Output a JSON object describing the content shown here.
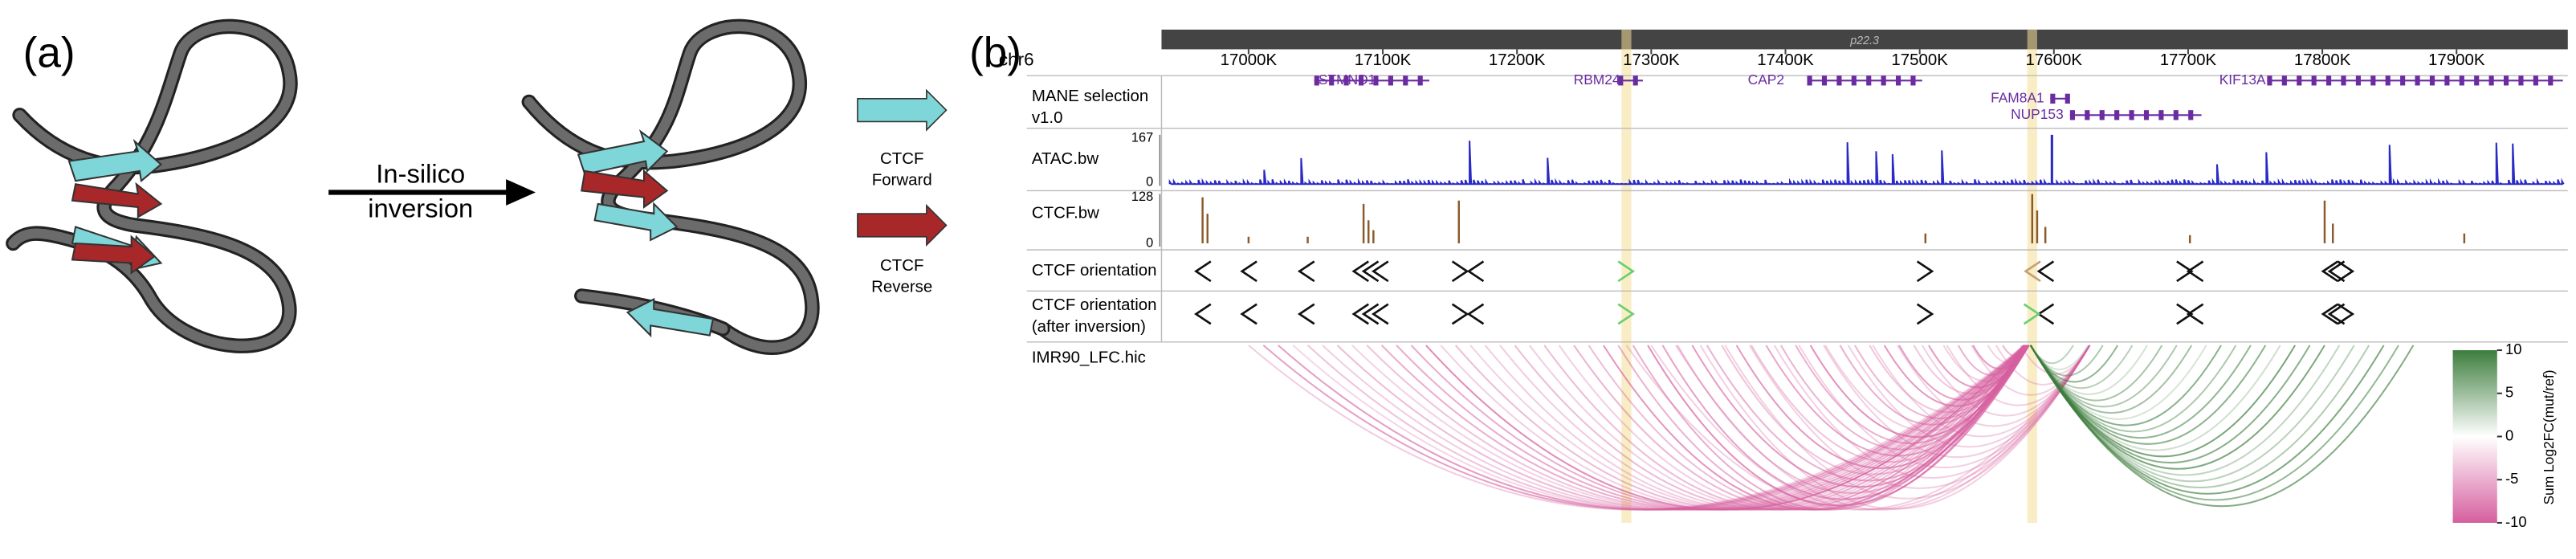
{
  "panel_a": {
    "label": "(a)",
    "arrow_text": [
      "In-silico",
      "inversion"
    ],
    "legend": [
      {
        "lines": [
          "CTCF",
          "Forward"
        ],
        "color": "#7fd6d8"
      },
      {
        "lines": [
          "CTCF",
          "Reverse"
        ],
        "color": "#a8282a"
      }
    ]
  },
  "panel_b": {
    "label": "(b)",
    "chromosome": "chr6",
    "band": "p22.3",
    "positions": [
      "17000K",
      "17100K",
      "17200K",
      "17300K",
      "17400K",
      "17500K",
      "17600K",
      "17700K",
      "17800K",
      "17900K"
    ],
    "tracks": [
      {
        "name_lines": [
          "MANE selection",
          "v1.0"
        ]
      },
      {
        "name_lines": [
          "ATAC.bw"
        ],
        "range": [
          167,
          0
        ]
      },
      {
        "name_lines": [
          "CTCF.bw"
        ],
        "range": [
          128,
          0
        ]
      },
      {
        "name_lines": [
          "CTCF orientation"
        ]
      },
      {
        "name_lines": [
          "CTCF orientation",
          "(after inversion)"
        ]
      },
      {
        "name_lines": [
          "IMR90_LFC.hic"
        ]
      }
    ],
    "genes": [
      "STMND1",
      "RBM24",
      "CAP2",
      "FAM8A1",
      "NUP153",
      "KIF13A"
    ],
    "colorbar": {
      "label": "Sum Log2FC(mut/ref)",
      "lim": [
        -10,
        10
      ],
      "ticks": [
        10,
        5,
        0,
        -5,
        -10
      ],
      "colors": [
        "#3d7d3d",
        "#ffffff",
        "#d65f9f"
      ]
    }
  }
}
